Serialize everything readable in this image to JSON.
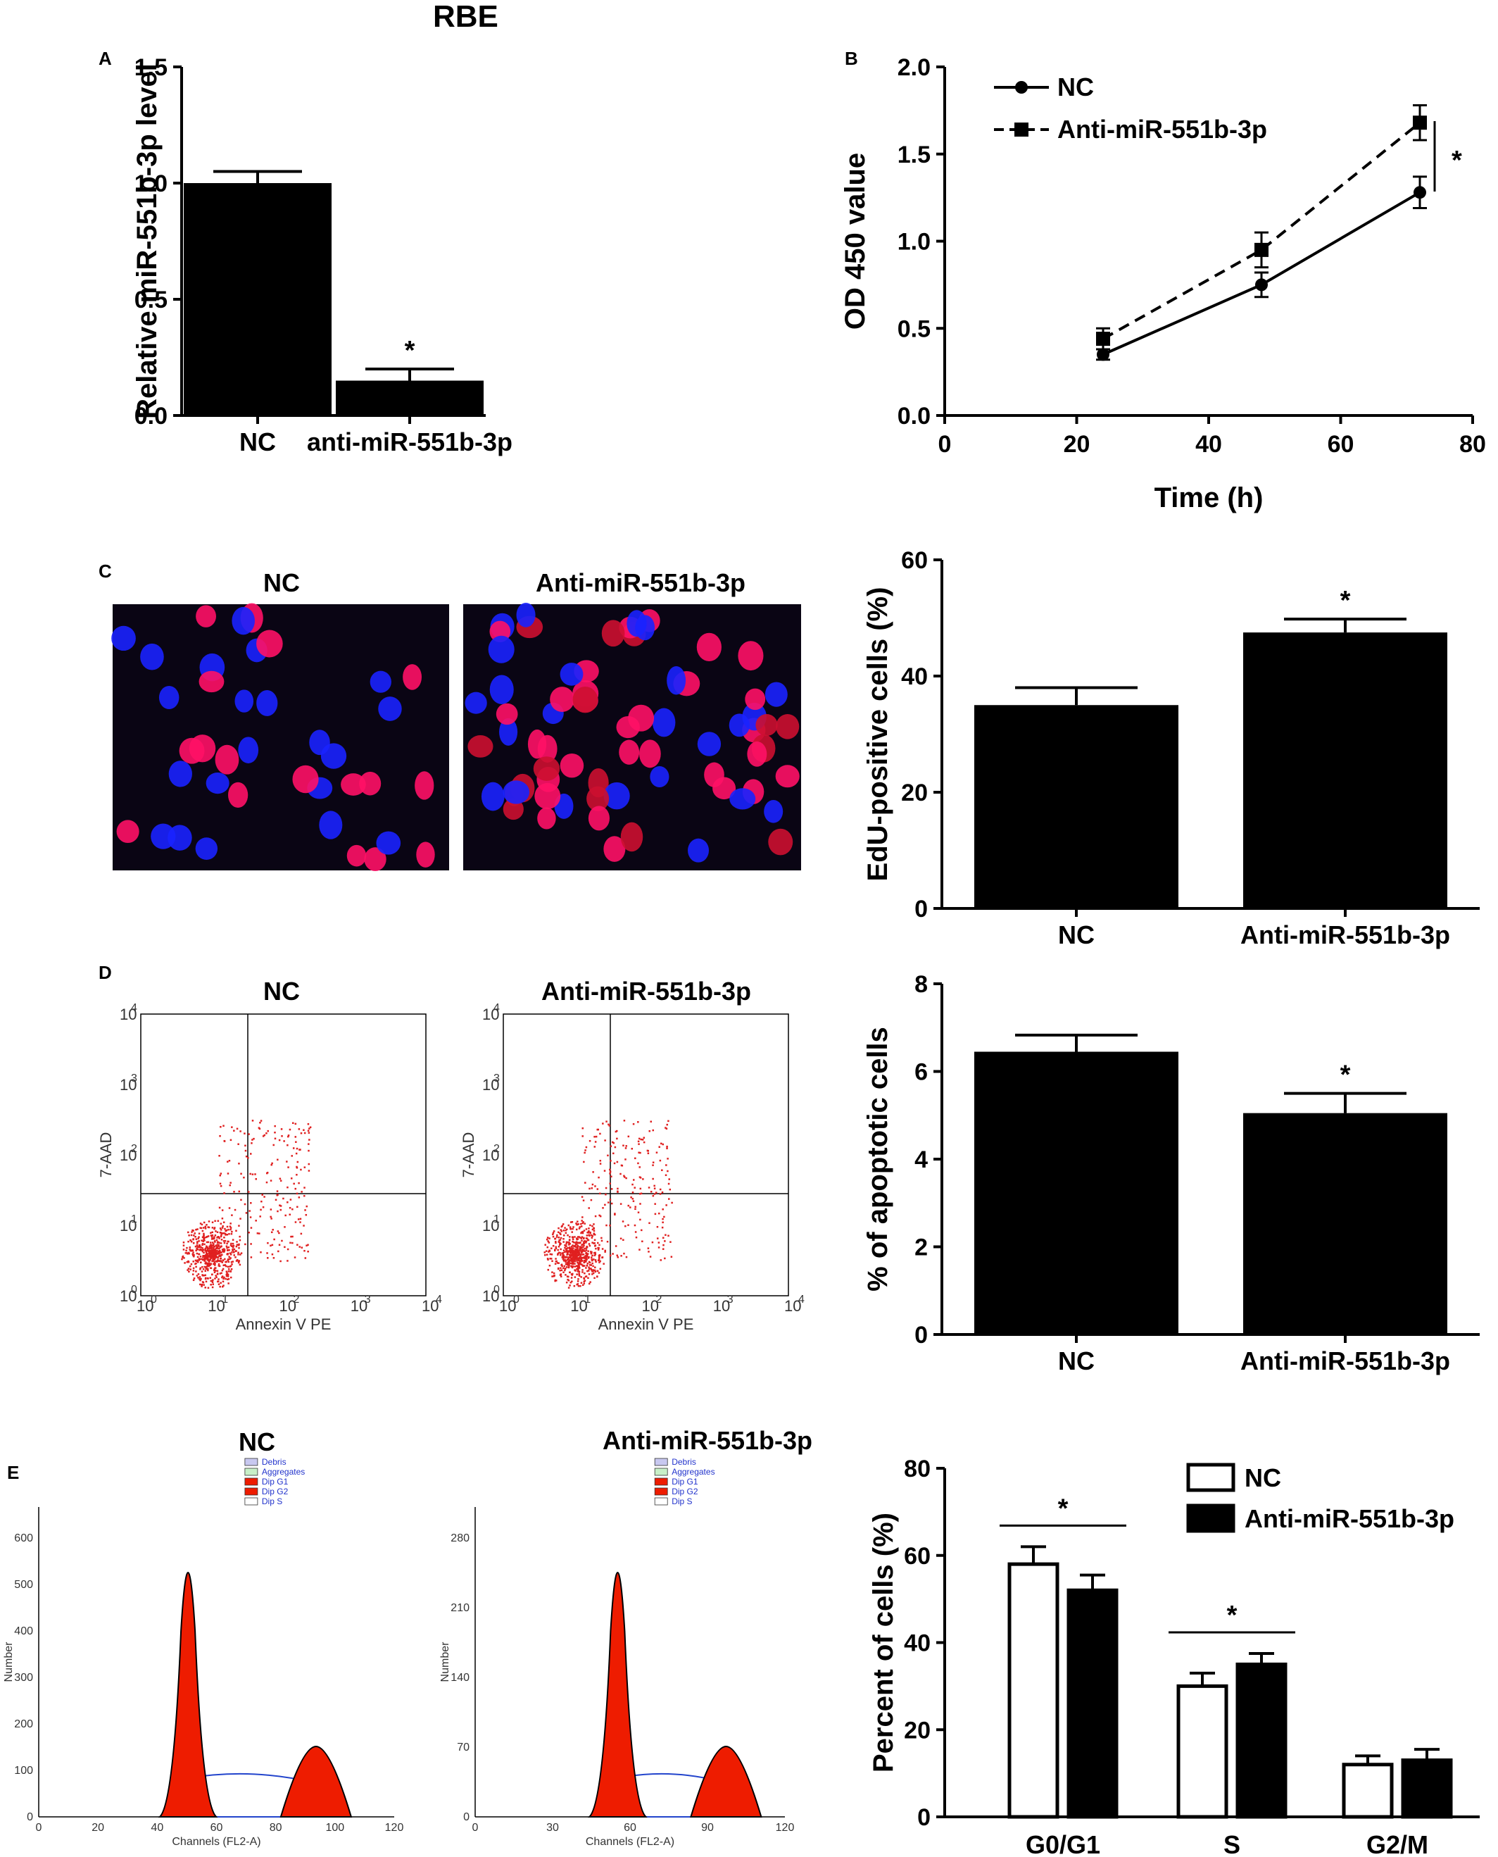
{
  "figure": {
    "main_title": "RBE",
    "panels": [
      "A",
      "B",
      "C",
      "D",
      "E"
    ]
  },
  "chart_data": [
    {
      "id": "A",
      "type": "bar",
      "categories": [
        "NC",
        "anti-miR-551b-3p"
      ],
      "values": [
        1.0,
        0.15
      ],
      "errors": [
        0.05,
        0.05
      ],
      "significance": [
        "",
        "*"
      ],
      "ylabel": "Relative miR-551b-3p level",
      "ylim": [
        0,
        1.5
      ],
      "yticks": [
        "0.0",
        "0.5",
        "1.0",
        "1.5"
      ],
      "bar_color": "#000000"
    },
    {
      "id": "B",
      "type": "line",
      "xlabel": "Time (h)",
      "ylabel": "OD 450 value",
      "xlim": [
        0,
        80
      ],
      "ylim": [
        0,
        2.0
      ],
      "xticks": [
        "0",
        "20",
        "40",
        "60",
        "80"
      ],
      "yticks": [
        "0.0",
        "0.5",
        "1.0",
        "1.5",
        "2.0"
      ],
      "x": [
        24,
        48,
        72
      ],
      "series": [
        {
          "name": "NC",
          "values": [
            0.35,
            0.75,
            1.28
          ],
          "errors": [
            0.03,
            0.07,
            0.09
          ],
          "marker": "circle",
          "dash": "solid"
        },
        {
          "name": "Anti-miR-551b-3p",
          "values": [
            0.44,
            0.95,
            1.68
          ],
          "errors": [
            0.06,
            0.1,
            0.1
          ],
          "marker": "square",
          "dash": "dashed"
        }
      ],
      "significance": "*",
      "legend": "top-left"
    },
    {
      "id": "C",
      "type": "bar",
      "categories": [
        "NC",
        "Anti-miR-551b-3p"
      ],
      "values": [
        35,
        47.5
      ],
      "errors": [
        3,
        2.3
      ],
      "significance": [
        "",
        "*"
      ],
      "ylabel": "EdU-positive cells (%)",
      "ylim": [
        0,
        60
      ],
      "yticks": [
        "0",
        "20",
        "40",
        "60"
      ]
    },
    {
      "id": "D",
      "type": "bar",
      "categories": [
        "NC",
        "Anti-miR-551b-3p"
      ],
      "values": [
        6.45,
        5.05
      ],
      "errors": [
        0.38,
        0.45
      ],
      "significance": [
        "",
        "*"
      ],
      "ylabel": "% of apoptotic cells",
      "ylim": [
        0,
        8
      ],
      "yticks": [
        "0",
        "2",
        "4",
        "6",
        "8"
      ]
    },
    {
      "id": "E",
      "type": "bar",
      "categories": [
        "G0/G1",
        "S",
        "G2/M"
      ],
      "series": [
        {
          "name": "NC",
          "values": [
            58,
            30,
            12
          ],
          "errors": [
            4,
            3,
            2
          ],
          "fill": "#ffffff"
        },
        {
          "name": "Anti-miR-551b-3p",
          "values": [
            52,
            35,
            13
          ],
          "errors": [
            3.5,
            2.5,
            2.5
          ],
          "fill": "#000000"
        }
      ],
      "significance": [
        "*",
        "*",
        ""
      ],
      "ylabel": "Percent of cells (%)",
      "ylim": [
        0,
        80
      ],
      "yticks": [
        "0",
        "20",
        "40",
        "60",
        "80"
      ],
      "legend": "top-right"
    }
  ],
  "panel_c_images": {
    "labels": [
      "NC",
      "Anti-miR-551b-3p"
    ],
    "background": "#0a0514",
    "nucleus_colors": [
      "#ff1166",
      "#1a22ff",
      "#cc1030"
    ]
  },
  "panel_d_flow": {
    "labels": [
      "NC",
      "Anti-miR-551b-3p"
    ],
    "xaxis": "Annexin V PE",
    "yaxis": "7-AAD",
    "tick_base": "10",
    "tick_exps": [
      "0",
      "1",
      "2",
      "3",
      "4"
    ],
    "dot_color": "#e02020"
  },
  "panel_e_histograms": {
    "labels": [
      "NC",
      "Anti-miR-551b-3p"
    ],
    "ylabel": "Number",
    "xlabel": "Channels (FL2-A)",
    "legend": [
      "Debris",
      "Aggregates",
      "Dip G1",
      "Dip G2",
      "Dip S"
    ],
    "left": {
      "xticks": [
        "0",
        "20",
        "40",
        "60",
        "80",
        "100",
        "120"
      ],
      "yticks": [
        "0",
        "100",
        "200",
        "300",
        "400",
        "500",
        "600"
      ]
    },
    "right": {
      "xticks": [
        "0",
        "30",
        "60",
        "90",
        "120"
      ],
      "yticks": [
        "0",
        "70",
        "140",
        "210",
        "280"
      ]
    },
    "peak_color": "#ee1c00",
    "s_phase_color": "#2244cc"
  }
}
